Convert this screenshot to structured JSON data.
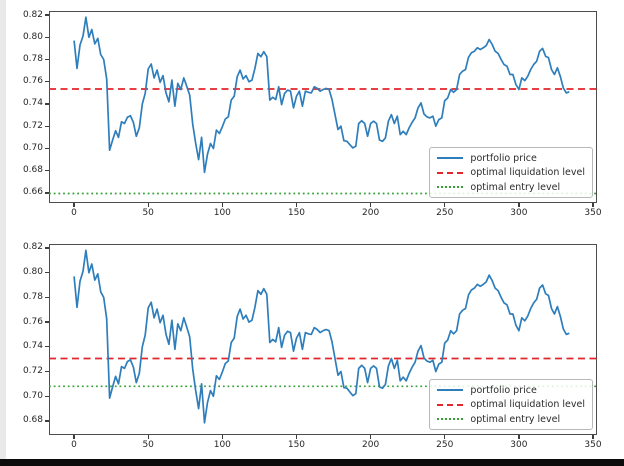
{
  "page": {
    "background_color": "#ffffff",
    "bottom_bar_color": "#0c0c0c",
    "left_strip_color": "#e9e9e9"
  },
  "chart_data": {
    "type": "line",
    "title": "",
    "xlabel": "",
    "ylabel": "",
    "grid": false,
    "legend": {
      "position": "lower right",
      "items": [
        {
          "label": "portfolio price",
          "style": "solid",
          "color": "#2e7ebc"
        },
        {
          "label": "optimal liquidation level",
          "style": "dashed",
          "color": "#e2262b"
        },
        {
          "label": "optimal entry level",
          "style": "dotted",
          "color": "#37a137"
        }
      ]
    },
    "series": {
      "name": "portfolio price",
      "color": "#2e7ebc",
      "x_start": 0,
      "x_step": 2,
      "values": [
        0.797,
        0.772,
        0.793,
        0.801,
        0.818,
        0.8,
        0.807,
        0.794,
        0.799,
        0.7845,
        0.78,
        0.7625,
        0.6985,
        0.7075,
        0.716,
        0.71,
        0.724,
        0.7225,
        0.728,
        0.7295,
        0.7235,
        0.711,
        0.7185,
        0.74,
        0.7495,
        0.7715,
        0.776,
        0.7635,
        0.7705,
        0.7595,
        0.7655,
        0.75,
        0.742,
        0.7615,
        0.738,
        0.7585,
        0.753,
        0.7635,
        0.756,
        0.748,
        0.722,
        0.705,
        0.69,
        0.71,
        0.6785,
        0.695,
        0.7045,
        0.7,
        0.7165,
        0.7135,
        0.7195,
        0.7265,
        0.7285,
        0.7435,
        0.747,
        0.7645,
        0.7705,
        0.7625,
        0.7655,
        0.76,
        0.7615,
        0.772,
        0.7855,
        0.7825,
        0.787,
        0.7825,
        0.7435,
        0.746,
        0.744,
        0.7555,
        0.7395,
        0.7495,
        0.7525,
        0.7515,
        0.7365,
        0.747,
        0.7515,
        0.738,
        0.7515,
        0.7505,
        0.75,
        0.7555,
        0.754,
        0.7515,
        0.753,
        0.754,
        0.753,
        0.744,
        0.7305,
        0.717,
        0.72,
        0.707,
        0.7065,
        0.7035,
        0.7005,
        0.702,
        0.7225,
        0.725,
        0.7225,
        0.711,
        0.7225,
        0.7245,
        0.7225,
        0.7075,
        0.7065,
        0.7095,
        0.7245,
        0.7305,
        0.7225,
        0.729,
        0.7125,
        0.7155,
        0.7125,
        0.7185,
        0.7235,
        0.7275,
        0.7365,
        0.741,
        0.731,
        0.7285,
        0.7275,
        0.729,
        0.72,
        0.726,
        0.7275,
        0.743,
        0.7455,
        0.753,
        0.7505,
        0.753,
        0.7665,
        0.7695,
        0.771,
        0.782,
        0.786,
        0.7875,
        0.7905,
        0.789,
        0.7905,
        0.7925,
        0.798,
        0.7935,
        0.7875,
        0.7855,
        0.78,
        0.7755,
        0.774,
        0.7665,
        0.7665,
        0.7575,
        0.753,
        0.7635,
        0.761,
        0.765,
        0.771,
        0.7755,
        0.7785,
        0.7875,
        0.79,
        0.783,
        0.7815,
        0.771,
        0.7665,
        0.7725,
        0.7645,
        0.7545,
        0.75,
        0.751
      ]
    },
    "panels": [
      {
        "xlim": [
          -16.9,
          352.7
        ],
        "ylim": [
          0.651,
          0.8236
        ],
        "yticks": [
          "0.66",
          "0.68",
          "0.70",
          "0.72",
          "0.74",
          "0.76",
          "0.78",
          "0.80",
          "0.82"
        ],
        "xticks": [
          0,
          50,
          100,
          150,
          200,
          250,
          300,
          350
        ],
        "liquidation_level": 0.7535,
        "entry_level": 0.6595
      },
      {
        "xlim": [
          -16.9,
          352.7
        ],
        "ylim": [
          0.6686,
          0.8232
        ],
        "yticks": [
          "0.68",
          "0.70",
          "0.72",
          "0.74",
          "0.76",
          "0.78",
          "0.80",
          "0.82"
        ],
        "xticks": [
          0,
          50,
          100,
          150,
          200,
          250,
          300,
          350
        ],
        "liquidation_level": 0.7305,
        "entry_level": 0.708
      }
    ]
  }
}
